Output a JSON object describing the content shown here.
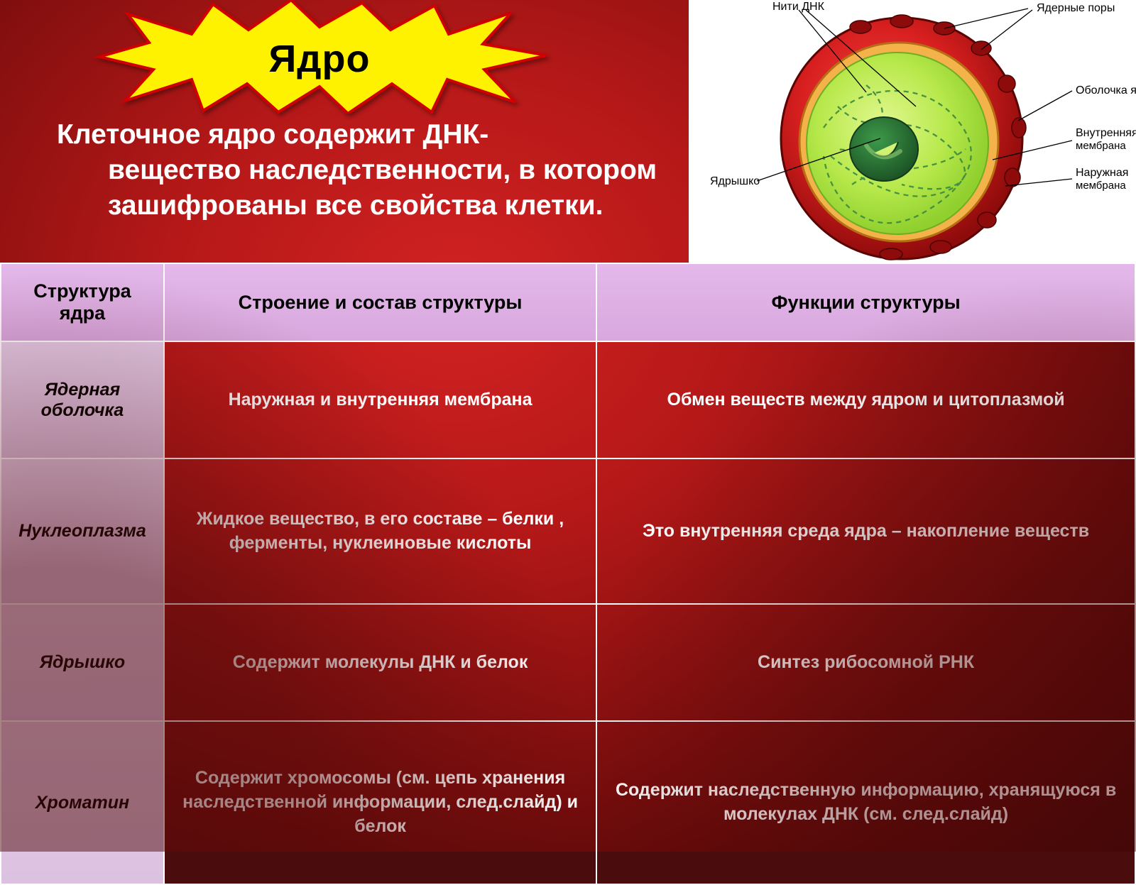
{
  "colors": {
    "burst_fill": "#fff200",
    "burst_stroke": "#d10000",
    "header_bg": "#e0b3e6",
    "label_bg": "#e2c9e6",
    "text_white": "#ffffff",
    "text_black": "#000000",
    "bg_accent_red": "#b51818"
  },
  "title": "Ядро",
  "subtitle_line1": "Клеточное ядро содержит ДНК-",
  "subtitle_rest": "вещество наследственности, в котором зашифрованы все свойства клетки.",
  "diagram": {
    "labels": {
      "dna_threads": "Нити ДНК",
      "nuclear_pores": "Ядерные поры",
      "nuclear_envelope": "Оболочка ядра",
      "inner_membrane": "Внутренняя мембрана",
      "outer_membrane": "Наружная мембрана",
      "nucleolus": "Ядрышко"
    },
    "palette": {
      "outer": "#d81f1f",
      "outer_dark": "#9c0e0e",
      "inner_ring": "#f4b24a",
      "plasm": "#b6e84a",
      "plasm_light": "#d6f57a",
      "nucleolus": "#2e7a3a",
      "nucleolus_dark": "#1f5a28",
      "thread": "#3a8a3f",
      "leader": "#000000"
    }
  },
  "table": {
    "headers": [
      "Структура ядра",
      "Строение и состав структуры",
      "Функции структуры"
    ],
    "rows": [
      {
        "label": "Ядерная оболочка",
        "structure": "Наружная и внутренняя мембрана",
        "function": "Обмен веществ между ядром и цитоплазмой",
        "height_class": ""
      },
      {
        "label": "Нуклеоплазма",
        "structure": "Жидкое вещество, в его составе – белки , ферменты, нуклеиновые кислоты",
        "function": "Это внутренняя среда ядра – накопление веществ",
        "height_class": "tall"
      },
      {
        "label": "Ядрышко",
        "structure": "Содержит молекулы ДНК и белок",
        "function": "Синтез рибосомной РНК",
        "height_class": ""
      },
      {
        "label": "Хроматин",
        "structure": "Содержит хромосомы (см. цепь хранения наследственной информации, след.слайд) и белок",
        "function": "Содержит наследственную информацию, хранящуюся в молекулах ДНК (см. след.слайд)",
        "height_class": "taller"
      }
    ]
  }
}
